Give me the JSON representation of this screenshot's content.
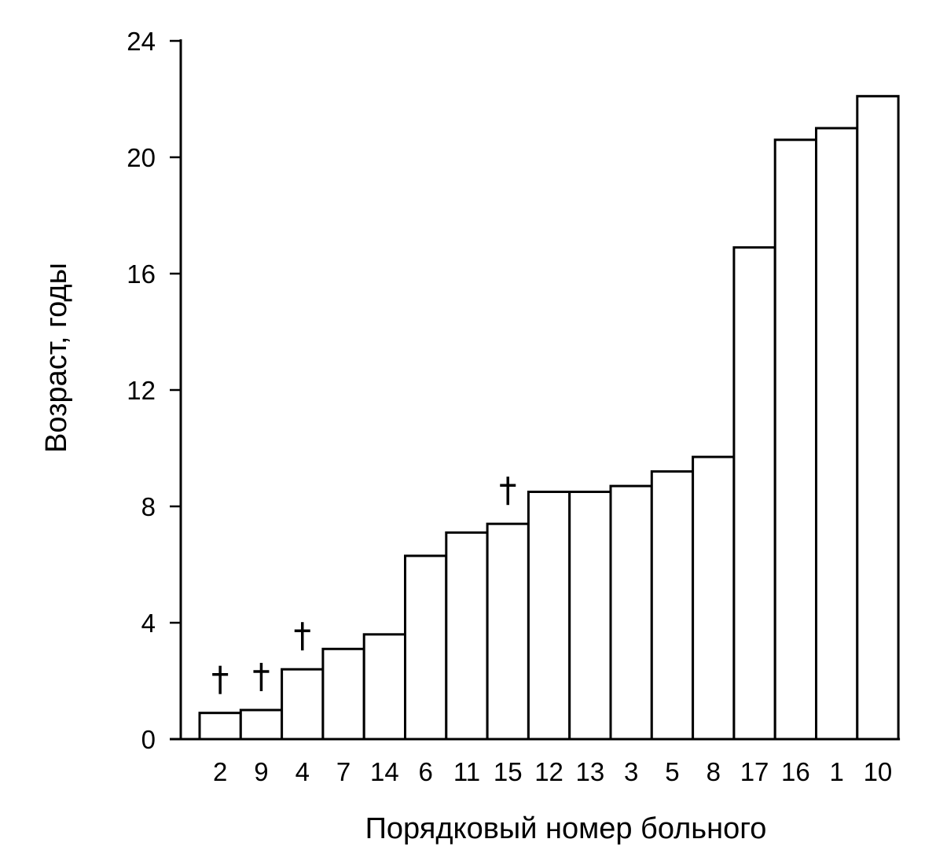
{
  "chart_data": {
    "type": "bar",
    "xlabel": "Порядковый номер больного",
    "ylabel": "Возраст, годы",
    "categories": [
      "2",
      "9",
      "4",
      "7",
      "14",
      "6",
      "11",
      "15",
      "12",
      "13",
      "3",
      "5",
      "8",
      "17",
      "16",
      "1",
      "10"
    ],
    "values": [
      0.9,
      1.0,
      2.4,
      3.1,
      3.6,
      6.3,
      7.1,
      7.4,
      8.5,
      8.5,
      8.7,
      9.2,
      9.7,
      16.9,
      20.6,
      21.0,
      22.1
    ],
    "marked_categories": [
      "2",
      "9",
      "4",
      "15"
    ],
    "marker_symbol": "dagger",
    "ylim": [
      0,
      24
    ],
    "yticks": [
      "0",
      "4",
      "8",
      "12",
      "16",
      "20",
      "24"
    ],
    "grid": false,
    "colors": {
      "bar_fill": "#ffffff",
      "bar_stroke": "#000000"
    }
  }
}
